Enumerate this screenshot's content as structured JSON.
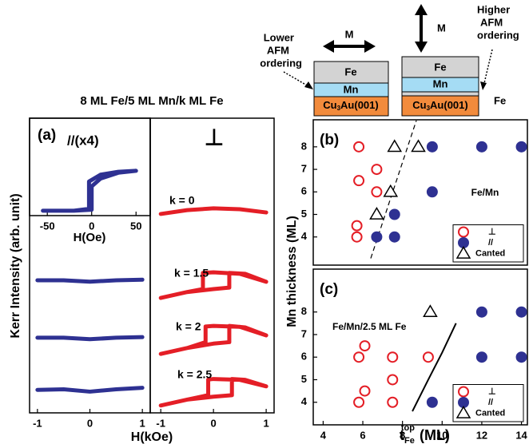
{
  "diagram": {
    "left": {
      "note": [
        "Lower",
        "AFM",
        "ordering"
      ],
      "moment": "M",
      "layers": [
        "Fe",
        "Mn"
      ],
      "substrate": [
        "Cu",
        "3",
        "Au(001)"
      ]
    },
    "right": {
      "note": [
        "Higher",
        "AFM",
        "ordering"
      ],
      "moment": "M",
      "layers": [
        "Fe",
        "Mn"
      ],
      "substrate": [
        "Cu",
        "3",
        "Au(001)"
      ],
      "spacer": "Fe"
    }
  },
  "chart_data": [
    {
      "type": "line",
      "panel_label": "(a)",
      "title": "8 ML Fe/5 ML Mn/k ML Fe",
      "header": "//(x4)",
      "ylabel": "Kerr Intensity  (arb. unit)",
      "xlabel": "H(kOe)",
      "xlim": [
        -1.15,
        1.15
      ],
      "xticks": [
        -1,
        0,
        1
      ],
      "ylim": [
        0,
        10
      ],
      "series": [
        {
          "color": "#2e3192",
          "x": [
            -1,
            -0.5,
            0,
            0.5,
            1
          ],
          "values": [
            4.5,
            4.5,
            4.45,
            4.5,
            4.52
          ]
        },
        {
          "color": "#2e3192",
          "x": [
            -1,
            -0.5,
            0,
            0.5,
            1
          ],
          "values": [
            2.55,
            2.55,
            2.5,
            2.55,
            2.57
          ]
        },
        {
          "color": "#2e3192",
          "x": [
            -1,
            -0.5,
            0,
            0.5,
            1
          ],
          "values": [
            0.78,
            0.8,
            0.72,
            0.8,
            0.85
          ]
        }
      ]
    },
    {
      "type": "line",
      "xlabel": "H(Oe)",
      "xlim": [
        -70,
        66
      ],
      "xticks": [
        -50,
        0,
        50
      ],
      "ylim": [
        0,
        1
      ],
      "series": [
        {
          "color": "#2e3192",
          "x": [
            -55,
            -20,
            0,
            0,
            10,
            30,
            50,
            30,
            10,
            -3,
            -3,
            -20,
            -55
          ],
          "values": [
            0.05,
            0.05,
            0.06,
            0.3,
            0.38,
            0.44,
            0.46,
            0.45,
            0.42,
            0.35,
            0.07,
            0.05,
            0.05
          ]
        }
      ]
    },
    {
      "type": "line",
      "header": "⊥",
      "xlim": [
        -1.2,
        1.15
      ],
      "xticks": [
        -1,
        0,
        1
      ],
      "ylim": [
        0,
        10
      ],
      "series": [
        {
          "name": "k = 0",
          "color": "#e41e26",
          "x": [
            -1,
            -0.5,
            0,
            0.5,
            1
          ],
          "values": [
            6.75,
            6.88,
            6.94,
            6.91,
            6.8
          ]
        },
        {
          "name": "k = 1.5",
          "color": "#e41e26",
          "x": [
            -1,
            -0.5,
            0,
            0.3,
            0.3,
            0.6,
            1,
            0.5,
            0,
            -0.2,
            -0.2,
            -0.5,
            -1
          ],
          "values": [
            3.9,
            4.1,
            4.2,
            4.25,
            4.75,
            4.72,
            4.45,
            4.72,
            4.77,
            4.75,
            4.2,
            4.1,
            3.9
          ]
        },
        {
          "name": "k = 2",
          "color": "#e41e26",
          "x": [
            -1,
            -0.5,
            0,
            0.3,
            0.3,
            0.6,
            1,
            0.5,
            0,
            -0.15,
            -0.15,
            -0.5,
            -1
          ],
          "values": [
            2.0,
            2.2,
            2.35,
            2.4,
            2.95,
            2.9,
            2.63,
            2.92,
            2.95,
            2.93,
            2.4,
            2.2,
            2.0
          ]
        },
        {
          "name": "k = 2.5",
          "color": "#e41e26",
          "x": [
            -1,
            -0.5,
            0,
            0.35,
            0.35,
            0.6,
            1,
            0.5,
            0,
            -0.1,
            -0.1,
            -0.5,
            -1
          ],
          "values": [
            0.25,
            0.45,
            0.55,
            0.6,
            1.15,
            1.12,
            0.9,
            1.12,
            1.15,
            1.13,
            0.6,
            0.45,
            0.25
          ]
        }
      ]
    },
    {
      "type": "scatter",
      "panel_label": "(b)",
      "annotation": "Fe/Mn",
      "ylabel": "Mn thickness (ML)",
      "xlim": [
        3.5,
        14.3
      ],
      "ylim": [
        2.75,
        9.2
      ],
      "yticks": [
        4,
        5,
        6,
        7,
        8
      ],
      "legend": "lower right",
      "series": [
        {
          "name": "⊥",
          "marker": "open-circle",
          "color": "#e41e26",
          "x": [
            5.8,
            5.8,
            6.7,
            6.7,
            5.7,
            5.7
          ],
          "values": [
            8,
            6.5,
            7,
            6,
            4.5,
            4
          ]
        },
        {
          "name": "//",
          "marker": "filled-circle",
          "color": "#2e3192",
          "x": [
            6.7,
            7.6,
            7.6,
            9.5,
            12,
            14,
            9.5
          ],
          "values": [
            4,
            5,
            4,
            8,
            8,
            8,
            6
          ]
        },
        {
          "name": "Canted",
          "marker": "triangle",
          "color": "#000000",
          "x": [
            7.6,
            8.8,
            7.4,
            6.7
          ],
          "values": [
            8,
            8,
            6,
            5
          ]
        }
      ],
      "lines": [
        {
          "style": "dashed",
          "x": [
            6.4,
            8.7
          ],
          "values": [
            3.05,
            9.17
          ]
        }
      ]
    },
    {
      "type": "scatter",
      "panel_label": "(c)",
      "annotation": "Fe/Mn/2.5 ML Fe",
      "xlabel": {
        "main": "t",
        "sub": "Fe",
        "sup": "top",
        "unit": "(ML)"
      },
      "xlim": [
        3.5,
        14.3
      ],
      "xticks": [
        4,
        6,
        8,
        10,
        12,
        14
      ],
      "ylim": [
        3,
        9.9
      ],
      "yticks": [
        4,
        5,
        6,
        7,
        8
      ],
      "legend": "lower right",
      "series": [
        {
          "name": "⊥",
          "marker": "open-circle",
          "color": "#e41e26",
          "x": [
            5.8,
            6.1,
            6.1,
            5.8,
            7.5,
            7.5,
            7.5,
            9.3
          ],
          "values": [
            6,
            6.5,
            4.5,
            4,
            6,
            5,
            4,
            6
          ]
        },
        {
          "name": "//",
          "marker": "filled-circle",
          "color": "#2e3192",
          "x": [
            9.5,
            12,
            14,
            12,
            14
          ],
          "values": [
            4,
            8,
            8,
            6,
            6
          ]
        },
        {
          "name": "Canted",
          "marker": "triangle",
          "color": "#000000",
          "x": [
            9.4
          ],
          "values": [
            8
          ]
        }
      ],
      "lines": [
        {
          "style": "solid",
          "x": [
            8.5,
            9.3,
            10,
            10.7
          ],
          "values": [
            3.6,
            5,
            6.2,
            7.5
          ]
        }
      ]
    }
  ]
}
